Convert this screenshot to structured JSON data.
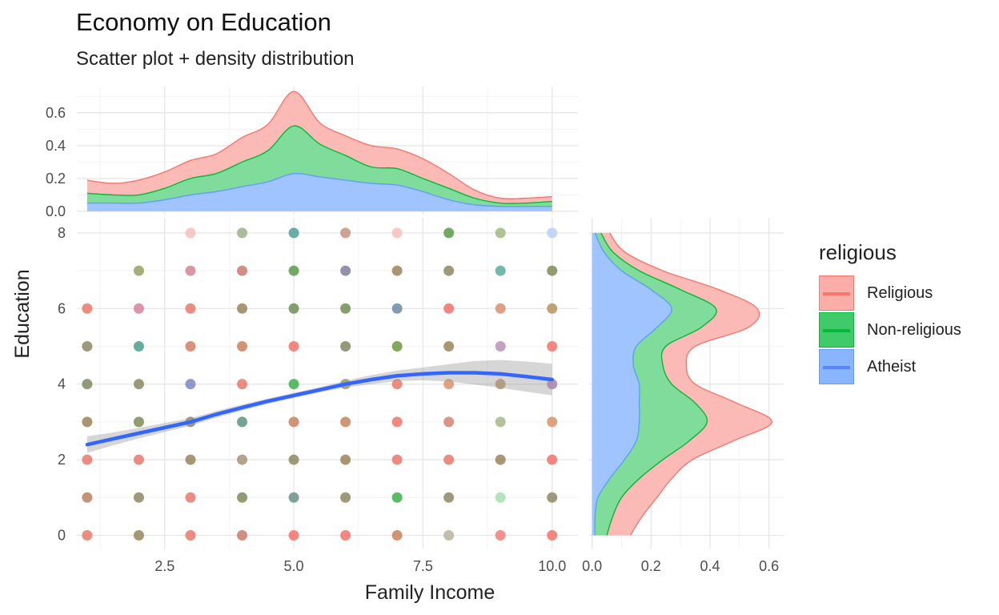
{
  "chart_data": {
    "type": "scatter",
    "title": "Economy on Education",
    "subtitle": "Scatter plot + density distribution",
    "xlabel": "Family Income",
    "ylabel": "Education",
    "xlim": [
      0.8,
      10.5
    ],
    "ylim": [
      -0.35,
      8.4
    ],
    "x_ticks": [
      "2.5",
      "5.0",
      "7.5",
      "10.0"
    ],
    "x_tick_values": [
      2.5,
      5.0,
      7.5,
      10.0
    ],
    "y_ticks": [
      "0",
      "2",
      "4",
      "6",
      "8"
    ],
    "y_tick_values": [
      0,
      2,
      4,
      6,
      8
    ],
    "grid": true,
    "legend": {
      "title": "religious",
      "placement": "right",
      "entries": [
        {
          "label": "Religious",
          "color": "#F8766D"
        },
        {
          "label": "Non-religious",
          "color": "#00BA38"
        },
        {
          "label": "Atheist",
          "color": "#619CFF"
        }
      ]
    },
    "points": [
      {
        "x": 1,
        "y": 0,
        "c": "#e8796a"
      },
      {
        "x": 1,
        "y": 1,
        "c": "#b98160"
      },
      {
        "x": 1,
        "y": 2,
        "c": "#e8796a"
      },
      {
        "x": 1,
        "y": 3,
        "c": "#9a855b"
      },
      {
        "x": 1,
        "y": 4,
        "c": "#7e8a64"
      },
      {
        "x": 1,
        "y": 5,
        "c": "#8d8760"
      },
      {
        "x": 1,
        "y": 6,
        "c": "#e8796a"
      },
      {
        "x": 2,
        "y": 0,
        "c": "#9a855b"
      },
      {
        "x": 2,
        "y": 1,
        "c": "#8d8760"
      },
      {
        "x": 2,
        "y": 2,
        "c": "#e8796a"
      },
      {
        "x": 2,
        "y": 3,
        "c": "#7d8c56"
      },
      {
        "x": 2,
        "y": 4,
        "c": "#8d8760"
      },
      {
        "x": 2,
        "y": 5,
        "c": "#4a9f8c"
      },
      {
        "x": 2,
        "y": 6,
        "c": "#d4829a"
      },
      {
        "x": 2,
        "y": 7,
        "c": "#97a163"
      },
      {
        "x": 3,
        "y": 0,
        "c": "#e8796a"
      },
      {
        "x": 3,
        "y": 1,
        "c": "#e8796a"
      },
      {
        "x": 3,
        "y": 2,
        "c": "#9a855b"
      },
      {
        "x": 3,
        "y": 3,
        "c": "#8d8760"
      },
      {
        "x": 3,
        "y": 4,
        "c": "#7c86c8"
      },
      {
        "x": 3,
        "y": 5,
        "c": "#d47f66"
      },
      {
        "x": 3,
        "y": 6,
        "c": "#e8796a"
      },
      {
        "x": 3,
        "y": 7,
        "c": "#d18593"
      },
      {
        "x": 3,
        "y": 8,
        "c": "#f6c0ba"
      },
      {
        "x": 4,
        "y": 0,
        "c": "#c57d6c"
      },
      {
        "x": 4,
        "y": 1,
        "c": "#7d8c56"
      },
      {
        "x": 4,
        "y": 2,
        "c": "#a4927a"
      },
      {
        "x": 4,
        "y": 3,
        "c": "#5d9483"
      },
      {
        "x": 4,
        "y": 4,
        "c": "#e8796a"
      },
      {
        "x": 4,
        "y": 5,
        "c": "#c9835e"
      },
      {
        "x": 4,
        "y": 6,
        "c": "#9a855b"
      },
      {
        "x": 4,
        "y": 7,
        "c": "#c97a70"
      },
      {
        "x": 4,
        "y": 8,
        "c": "#9bb289"
      },
      {
        "x": 5,
        "y": 0,
        "c": "#f07368"
      },
      {
        "x": 5,
        "y": 1,
        "c": "#6c8f88"
      },
      {
        "x": 5,
        "y": 2,
        "c": "#8d8760"
      },
      {
        "x": 5,
        "y": 3,
        "c": "#c9835e"
      },
      {
        "x": 5,
        "y": 4,
        "c": "#3db04a"
      },
      {
        "x": 5,
        "y": 5,
        "c": "#f07368"
      },
      {
        "x": 5,
        "y": 6,
        "c": "#6f8d54"
      },
      {
        "x": 5,
        "y": 7,
        "c": "#5b9a4a"
      },
      {
        "x": 5,
        "y": 8,
        "c": "#4f9f98"
      },
      {
        "x": 6,
        "y": 0,
        "c": "#f07368"
      },
      {
        "x": 6,
        "y": 1,
        "c": "#8d8760"
      },
      {
        "x": 6,
        "y": 2,
        "c": "#9a855b"
      },
      {
        "x": 6,
        "y": 3,
        "c": "#c9835e"
      },
      {
        "x": 6,
        "y": 4,
        "c": "#9a9a5b"
      },
      {
        "x": 6,
        "y": 5,
        "c": "#7e8a64"
      },
      {
        "x": 6,
        "y": 6,
        "c": "#6f8d54"
      },
      {
        "x": 6,
        "y": 7,
        "c": "#7f7f9b"
      },
      {
        "x": 6,
        "y": 8,
        "c": "#c9907e"
      },
      {
        "x": 7,
        "y": 0,
        "c": "#c9835e"
      },
      {
        "x": 7,
        "y": 1,
        "c": "#3db04a"
      },
      {
        "x": 7,
        "y": 2,
        "c": "#e8796a"
      },
      {
        "x": 7,
        "y": 3,
        "c": "#f07368"
      },
      {
        "x": 7,
        "y": 4,
        "c": "#e8796a"
      },
      {
        "x": 7,
        "y": 5,
        "c": "#6f9a3d"
      },
      {
        "x": 7,
        "y": 6,
        "c": "#6f8aa5"
      },
      {
        "x": 7,
        "y": 7,
        "c": "#9a855b"
      },
      {
        "x": 7,
        "y": 8,
        "c": "#f6c0ba"
      },
      {
        "x": 8,
        "y": 0,
        "c": "#b9b39b"
      },
      {
        "x": 8,
        "y": 1,
        "c": "#8d8760"
      },
      {
        "x": 8,
        "y": 2,
        "c": "#e8796a"
      },
      {
        "x": 8,
        "y": 3,
        "c": "#d4826e"
      },
      {
        "x": 8,
        "y": 4,
        "c": "#d9936e"
      },
      {
        "x": 8,
        "y": 5,
        "c": "#9a855b"
      },
      {
        "x": 8,
        "y": 6,
        "c": "#f07368"
      },
      {
        "x": 8,
        "y": 7,
        "c": "#8d8760"
      },
      {
        "x": 8,
        "y": 8,
        "c": "#5b9a4a"
      },
      {
        "x": 9,
        "y": 0,
        "c": "#f07f78"
      },
      {
        "x": 9,
        "y": 1,
        "c": "#a6e0b0"
      },
      {
        "x": 9,
        "y": 2,
        "c": "#9a855b"
      },
      {
        "x": 9,
        "y": 3,
        "c": "#a8b98a"
      },
      {
        "x": 9,
        "y": 4,
        "c": "#b9935e"
      },
      {
        "x": 9,
        "y": 5,
        "c": "#b892b6"
      },
      {
        "x": 9,
        "y": 6,
        "c": "#d9906e"
      },
      {
        "x": 9,
        "y": 7,
        "c": "#59ab9f"
      },
      {
        "x": 9,
        "y": 8,
        "c": "#a2b97f"
      },
      {
        "x": 10,
        "y": 0,
        "c": "#f07368"
      },
      {
        "x": 10,
        "y": 1,
        "c": "#8d8760"
      },
      {
        "x": 10,
        "y": 2,
        "c": "#f07368"
      },
      {
        "x": 10,
        "y": 3,
        "c": "#d9936e"
      },
      {
        "x": 10,
        "y": 4,
        "c": "#a87fb0"
      },
      {
        "x": 10,
        "y": 5,
        "c": "#f07368"
      },
      {
        "x": 10,
        "y": 6,
        "c": "#b9935e"
      },
      {
        "x": 10,
        "y": 7,
        "c": "#7d8c56"
      },
      {
        "x": 10,
        "y": 8,
        "c": "#b9cff5"
      }
    ],
    "smooth": {
      "color": "#3366FF",
      "x": [
        1,
        1.5,
        2,
        2.5,
        3,
        3.5,
        4,
        4.5,
        5,
        5.5,
        6,
        6.5,
        7,
        7.5,
        8,
        8.5,
        9,
        9.5,
        10
      ],
      "y": [
        2.4,
        2.55,
        2.7,
        2.85,
        3.0,
        3.2,
        3.38,
        3.55,
        3.7,
        3.85,
        4.0,
        4.12,
        4.22,
        4.27,
        4.3,
        4.3,
        4.27,
        4.2,
        4.12
      ],
      "se_lower": [
        2.18,
        2.38,
        2.56,
        2.73,
        2.9,
        3.11,
        3.3,
        3.48,
        3.63,
        3.78,
        3.91,
        4.0,
        4.08,
        4.1,
        4.07,
        3.99,
        3.9,
        3.8,
        3.7
      ],
      "se_upper": [
        2.62,
        2.72,
        2.84,
        2.97,
        3.1,
        3.29,
        3.46,
        3.62,
        3.77,
        3.92,
        4.09,
        4.24,
        4.36,
        4.44,
        4.53,
        4.61,
        4.64,
        4.6,
        4.54
      ]
    },
    "top_density": {
      "ylim": [
        -0.02,
        0.76
      ],
      "y_ticks": [
        "0.0",
        "0.2",
        "0.4",
        "0.6"
      ],
      "y_tick_values": [
        0,
        0.2,
        0.4,
        0.6
      ],
      "x": [
        1,
        1.5,
        2,
        2.5,
        3,
        3.5,
        4,
        4.5,
        5,
        5.5,
        6,
        6.5,
        7,
        7.5,
        8,
        8.5,
        9,
        9.5,
        10
      ],
      "atheist_top": [
        0.05,
        0.05,
        0.05,
        0.07,
        0.1,
        0.12,
        0.15,
        0.18,
        0.23,
        0.21,
        0.19,
        0.17,
        0.16,
        0.12,
        0.07,
        0.04,
        0.03,
        0.03,
        0.03
      ],
      "nonreligious_top": [
        0.11,
        0.1,
        0.1,
        0.14,
        0.2,
        0.23,
        0.3,
        0.37,
        0.52,
        0.41,
        0.34,
        0.27,
        0.26,
        0.2,
        0.14,
        0.08,
        0.05,
        0.05,
        0.06
      ],
      "religious_top": [
        0.19,
        0.17,
        0.19,
        0.24,
        0.31,
        0.35,
        0.45,
        0.53,
        0.73,
        0.54,
        0.46,
        0.4,
        0.38,
        0.32,
        0.23,
        0.13,
        0.08,
        0.08,
        0.09
      ]
    },
    "right_density": {
      "xlim": [
        -0.01,
        0.65
      ],
      "x_ticks": [
        "0.0",
        "0.2",
        "0.4",
        "0.6"
      ],
      "x_tick_values": [
        0,
        0.2,
        0.4,
        0.6
      ],
      "y": [
        0,
        0.5,
        1,
        1.5,
        2,
        2.5,
        3,
        3.5,
        4,
        4.5,
        5,
        5.5,
        6,
        6.5,
        7,
        7.5,
        8
      ],
      "atheist_right": [
        0.01,
        0.01,
        0.02,
        0.06,
        0.11,
        0.15,
        0.16,
        0.16,
        0.16,
        0.14,
        0.15,
        0.22,
        0.27,
        0.2,
        0.1,
        0.04,
        0.01
      ],
      "nonreligious_right": [
        0.05,
        0.07,
        0.1,
        0.16,
        0.24,
        0.33,
        0.39,
        0.35,
        0.27,
        0.24,
        0.25,
        0.37,
        0.42,
        0.3,
        0.16,
        0.07,
        0.03
      ],
      "religious_right": [
        0.13,
        0.17,
        0.22,
        0.27,
        0.34,
        0.48,
        0.61,
        0.49,
        0.35,
        0.32,
        0.35,
        0.53,
        0.56,
        0.43,
        0.24,
        0.11,
        0.06
      ]
    }
  }
}
